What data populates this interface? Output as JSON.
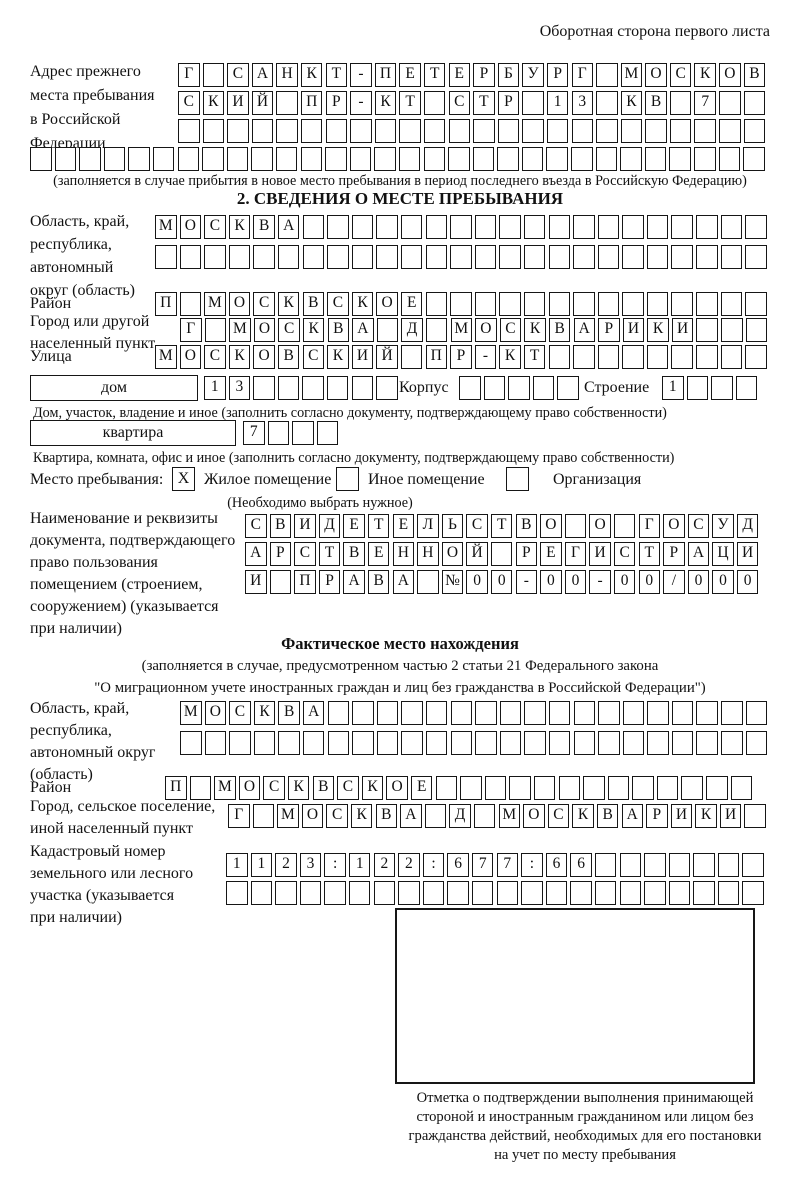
{
  "page": {
    "header_note": "Оборотная сторона первого листа"
  },
  "prev_address": {
    "label_lines": [
      "Адрес прежнего",
      "места пребывания",
      "в Российской",
      "Федерации"
    ],
    "rows": [
      {
        "text": "Г САНКТ-ПЕТЕРБУРГ МОСКОВ",
        "len": 24
      },
      {
        "text": "СКИЙ ПР-КТ СТР 13 КВ 7",
        "len": 24
      },
      {
        "text": "",
        "len": 24
      },
      {
        "text": "",
        "len": 30
      }
    ],
    "caption": "(заполняется в случае прибытия в новое место пребывания в период последнего въезда в Российскую Федерацию)"
  },
  "section2": {
    "title": "2. СВЕДЕНИЯ О МЕСТЕ ПРЕБЫВАНИЯ",
    "region": {
      "label_lines": [
        "Область, край,",
        "республика,",
        "автономный",
        "округ (область)"
      ],
      "rows": [
        {
          "text": "МОСКВА",
          "len": 25
        },
        {
          "text": "",
          "len": 25
        }
      ]
    },
    "district": {
      "label": "Район",
      "row": {
        "text": "П МОСКВСКОЕ",
        "len": 25
      }
    },
    "city": {
      "label_lines": [
        "Город или другой",
        "населенный пункт"
      ],
      "row": {
        "text": "Г МОСКВА Д МОСКВАРИКИ",
        "len": 24
      }
    },
    "street": {
      "label": "Улица",
      "row": {
        "text": "МОСКОВСКИЙ ПР-КТ",
        "len": 25
      }
    },
    "house": {
      "type_label": "дом",
      "number_row": {
        "text": "13",
        "len": 8
      },
      "korpus_label": "Корпус",
      "korpus_row": {
        "text": "",
        "len": 5
      },
      "stroenie_label": "Строение",
      "stroenie_row": {
        "text": "1",
        "len": 4
      },
      "caption": "Дом, участок, владение и иное (заполнить согласно документу, подтверждающему право собственности)"
    },
    "apartment": {
      "type_label": "квартира",
      "row": {
        "text": "7",
        "len": 4
      },
      "caption": "Квартира, комната, офис и иное (заполнить согласно документу, подтверждающему право собственности)"
    },
    "stay_type": {
      "label": "Место пребывания:",
      "options": [
        {
          "label": "Жилое помещение",
          "mark": "X"
        },
        {
          "label": "Иное помещение",
          "mark": ""
        },
        {
          "label": "Организация",
          "mark": ""
        }
      ],
      "note": "(Необходимо выбрать нужное)"
    },
    "doc": {
      "label_lines": [
        "Наименование и реквизиты",
        "документа, подтверждающего",
        "право пользования",
        "помещением (строением,",
        "сооружением) (указывается",
        "при наличии)"
      ],
      "rows": [
        {
          "text": "СВИДЕТЕЛЬСТВО О ГОСУД",
          "len": 21
        },
        {
          "text": "АРСТВЕННОЙ РЕГИСТРАЦИ",
          "len": 21
        },
        {
          "text": "И ПРАВА №00-00-00/000",
          "len": 21
        }
      ]
    }
  },
  "actual_location": {
    "title": "Фактическое место нахождения",
    "subtitle_lines": [
      "(заполняется в случае, предусмотренном частью 2 статьи 21 Федерального закона",
      "\"О миграционном учете иностранных граждан и лиц без гражданства в Российской Федерации\")"
    ],
    "region": {
      "label_lines": [
        "Область, край,",
        "республика,",
        "автономный округ",
        "(область)"
      ],
      "rows": [
        {
          "text": "МОСКВА",
          "len": 24
        },
        {
          "text": "",
          "len": 24
        }
      ]
    },
    "district": {
      "label": "Район",
      "row": {
        "text": "П МОСКВСКОЕ",
        "len": 24
      }
    },
    "city": {
      "label_lines": [
        "Город, сельское поселение,",
        "иной населенный пункт"
      ],
      "row": {
        "text": "Г МОСКВА Д МОСКВАРИКИ",
        "len": 22
      }
    },
    "cadastre": {
      "label_lines": [
        "Кадастровый номер",
        "земельного или лесного",
        "участка (указывается",
        "при наличии)"
      ],
      "rows": [
        {
          "text": "1123:122:677:66",
          "len": 22
        },
        {
          "text": "",
          "len": 22
        }
      ]
    }
  },
  "confirmation": {
    "caption_lines": [
      "Отметка о подтверждении выполнения принимающей",
      "стороной и иностранным гражданином или лицом без",
      "гражданства действий, необходимых для его постановки",
      "на учет по месту пребывания"
    ]
  }
}
